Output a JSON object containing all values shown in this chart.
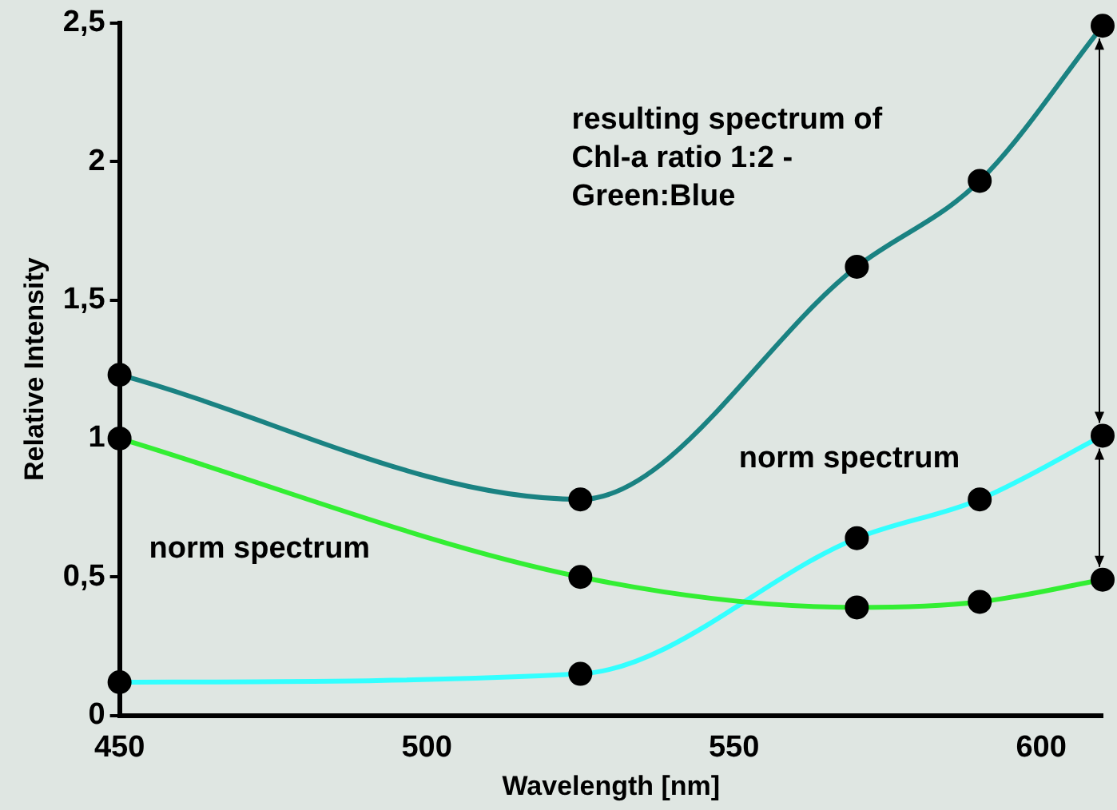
{
  "chart_data": {
    "type": "line",
    "xlabel": "Wavelength [nm]",
    "ylabel": "Relative Intensity",
    "x": [
      450,
      525,
      570,
      590,
      610
    ],
    "series": [
      {
        "color": "#1a8282",
        "values": [
          1.23,
          0.78,
          1.62,
          1.93,
          2.49
        ]
      },
      {
        "color": "#33ee33",
        "values": [
          1.0,
          0.5,
          0.39,
          0.41,
          0.49
        ]
      },
      {
        "color": "#33ffff",
        "values": [
          0.12,
          0.15,
          0.64,
          0.78,
          1.01
        ]
      }
    ],
    "xlim": [
      450,
      610
    ],
    "xticks": [
      450,
      500,
      550,
      600
    ],
    "ylim": [
      0,
      2.5
    ],
    "yticks": [
      0,
      {
        "value": 0.5,
        "label": "0,5"
      },
      1,
      {
        "value": 1.5,
        "label": "1,5"
      },
      2,
      {
        "value": 2.5,
        "label": "2,5"
      }
    ],
    "marker": "circle",
    "grid": false,
    "legend": false,
    "annotations": [
      "resulting spectrum of\nChl-a ratio 1:2 -\nGreen:Blue",
      "norm spectrum",
      "norm spectrum"
    ]
  }
}
